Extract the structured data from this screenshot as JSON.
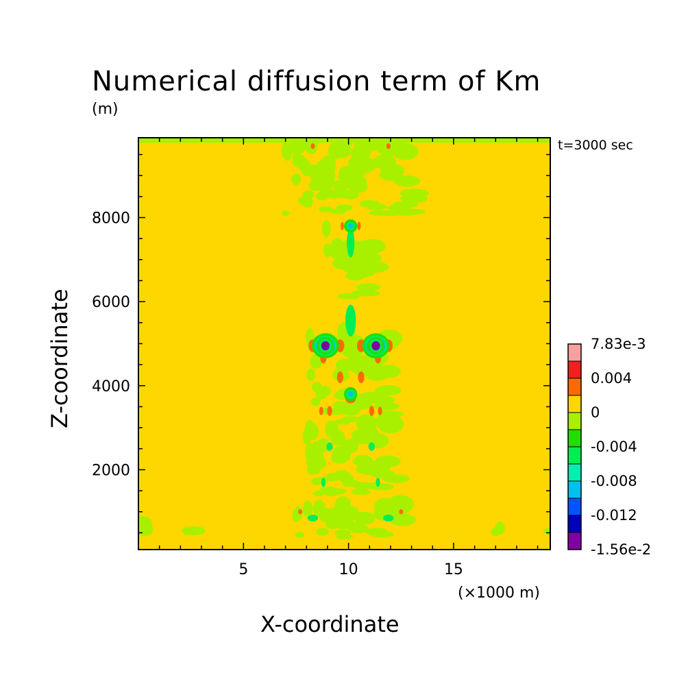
{
  "chart_data": {
    "type": "heatmap",
    "title": "Numerical diffusion term of Km",
    "unit": "(m)",
    "time_label": "t=3000 sec",
    "xlabel": "X-coordinate",
    "xunit": "(×1000 m)",
    "ylabel": "Z-coordinate",
    "xlim": [
      0,
      19.6
    ],
    "ylim": [
      100,
      9900
    ],
    "x_ticks": [
      "5",
      "10",
      "15"
    ],
    "x_tick_values": [
      5,
      10,
      15
    ],
    "y_ticks": [
      "2000",
      "4000",
      "6000",
      "8000"
    ],
    "y_tick_values": [
      2000,
      4000,
      6000,
      8000
    ],
    "background_level": 0,
    "colorbar": {
      "labels": [
        "7.83e-3",
        "0.004",
        "0",
        "-0.004",
        "-0.008",
        "-0.012",
        "-1.56e-2"
      ],
      "colors_top_to_bottom": [
        "#f8a0a0",
        "#ee2020",
        "#ff6a00",
        "#ffd700",
        "#a8f000",
        "#22dd00",
        "#00ee55",
        "#00eeb0",
        "#00c0ee",
        "#0055ff",
        "#0000bb",
        "#8000a0"
      ]
    },
    "features": [
      {
        "x": 8.9,
        "z": 4950,
        "value": -0.0156,
        "rx": 0.2,
        "rz": 110
      },
      {
        "x": 11.3,
        "z": 4950,
        "value": -0.0156,
        "rx": 0.2,
        "rz": 110
      },
      {
        "x": 8.9,
        "z": 4950,
        "value": -0.008,
        "rx": 0.45,
        "rz": 200
      },
      {
        "x": 11.3,
        "z": 4950,
        "value": -0.008,
        "rx": 0.45,
        "rz": 200
      },
      {
        "x": 8.3,
        "z": 4950,
        "value": 0.004,
        "rx": 0.2,
        "rz": 150
      },
      {
        "x": 9.6,
        "z": 4950,
        "value": 0.004,
        "rx": 0.2,
        "rz": 150
      },
      {
        "x": 10.6,
        "z": 4950,
        "value": 0.004,
        "rx": 0.2,
        "rz": 150
      },
      {
        "x": 11.9,
        "z": 4950,
        "value": 0.004,
        "rx": 0.2,
        "rz": 150
      },
      {
        "x": 8.8,
        "z": 4650,
        "value": 0.004,
        "rx": 0.15,
        "rz": 120
      },
      {
        "x": 11.4,
        "z": 4650,
        "value": 0.004,
        "rx": 0.15,
        "rz": 120
      },
      {
        "x": 9.6,
        "z": 4200,
        "value": 0.004,
        "rx": 0.15,
        "rz": 140
      },
      {
        "x": 10.6,
        "z": 4200,
        "value": 0.004,
        "rx": 0.15,
        "rz": 140
      },
      {
        "x": 10.1,
        "z": 3700,
        "value": 0.004,
        "rx": 0.25,
        "rz": 120
      },
      {
        "x": 10.1,
        "z": 3800,
        "value": -0.008,
        "rx": 0.12,
        "rz": 70
      },
      {
        "x": 9.1,
        "z": 3400,
        "value": 0.004,
        "rx": 0.12,
        "rz": 120
      },
      {
        "x": 11.1,
        "z": 3400,
        "value": 0.004,
        "rx": 0.12,
        "rz": 120
      },
      {
        "x": 8.7,
        "z": 3400,
        "value": 0.004,
        "rx": 0.1,
        "rz": 100
      },
      {
        "x": 11.5,
        "z": 3400,
        "value": 0.004,
        "rx": 0.1,
        "rz": 100
      },
      {
        "x": 10.1,
        "z": 5550,
        "value": -0.004,
        "rx": 0.25,
        "rz": 380
      },
      {
        "x": 10.1,
        "z": 7400,
        "value": -0.004,
        "rx": 0.18,
        "rz": 350
      },
      {
        "x": 10.1,
        "z": 7800,
        "value": -0.008,
        "rx": 0.12,
        "rz": 60
      },
      {
        "x": 9.7,
        "z": 7800,
        "value": 0.004,
        "rx": 0.08,
        "rz": 100
      },
      {
        "x": 10.5,
        "z": 7800,
        "value": 0.004,
        "rx": 0.08,
        "rz": 100
      },
      {
        "x": 8.3,
        "z": 9700,
        "value": 0.004,
        "rx": 0.1,
        "rz": 70
      },
      {
        "x": 11.9,
        "z": 9700,
        "value": 0.004,
        "rx": 0.1,
        "rz": 70
      },
      {
        "x": 7.7,
        "z": 1000,
        "value": 0.004,
        "rx": 0.1,
        "rz": 60
      },
      {
        "x": 12.5,
        "z": 1000,
        "value": 0.004,
        "rx": 0.1,
        "rz": 60
      },
      {
        "x": 8.3,
        "z": 850,
        "value": -0.004,
        "rx": 0.25,
        "rz": 80
      },
      {
        "x": 11.9,
        "z": 850,
        "value": -0.004,
        "rx": 0.25,
        "rz": 80
      },
      {
        "x": 9.1,
        "z": 2550,
        "value": -0.004,
        "rx": 0.15,
        "rz": 100
      },
      {
        "x": 11.1,
        "z": 2550,
        "value": -0.004,
        "rx": 0.15,
        "rz": 100
      },
      {
        "x": 8.8,
        "z": 1700,
        "value": -0.004,
        "rx": 0.1,
        "rz": 110
      },
      {
        "x": 11.4,
        "z": 1700,
        "value": -0.004,
        "rx": 0.1,
        "rz": 110
      }
    ],
    "weak_negative_regions": [
      {
        "x": 10.1,
        "z": 9000,
        "rx": 3.1,
        "rz": 900
      },
      {
        "x": 10.1,
        "z": 7000,
        "rx": 1.2,
        "rz": 900
      },
      {
        "x": 10.1,
        "z": 4200,
        "rx": 2.0,
        "rz": 1100
      },
      {
        "x": 10.1,
        "z": 2300,
        "rx": 2.2,
        "rz": 900
      },
      {
        "x": 10.1,
        "z": 800,
        "rx": 2.6,
        "rz": 400
      },
      {
        "x": 1.5,
        "z": 600,
        "rx": 1.8,
        "rz": 120
      },
      {
        "x": 18.7,
        "z": 600,
        "rx": 1.8,
        "rz": 120
      }
    ]
  }
}
